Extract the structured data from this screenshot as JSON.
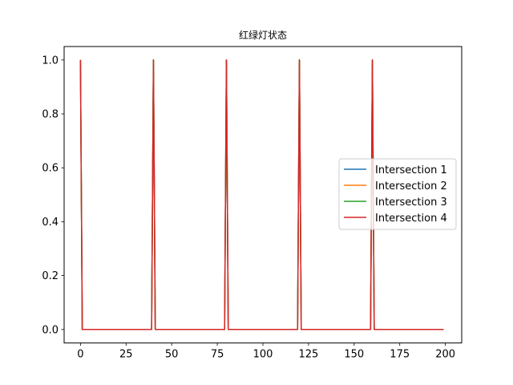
{
  "chart_data": {
    "type": "line",
    "title": "红绿灯状态",
    "xlabel": "",
    "ylabel": "",
    "xlim": [
      -8.95,
      208.95
    ],
    "ylim": [
      -0.05,
      1.05
    ],
    "x_ticks": [
      0,
      25,
      50,
      75,
      100,
      125,
      150,
      175,
      200
    ],
    "y_ticks": [
      0.0,
      0.2,
      0.4,
      0.6,
      0.8,
      1.0
    ],
    "x_tick_labels": [
      "0",
      "25",
      "50",
      "75",
      "100",
      "125",
      "150",
      "175",
      "200"
    ],
    "y_tick_labels": [
      "0.0",
      "0.2",
      "0.4",
      "0.6",
      "0.8",
      "1.0"
    ],
    "grid": false,
    "legend_position": "center-right",
    "x_range": [
      0,
      199
    ],
    "spike_x": [
      0,
      40,
      80,
      120,
      160
    ],
    "spike_value": 1,
    "base_value": 0,
    "series": [
      {
        "name": "Intersection 1",
        "color": "#1f77b4"
      },
      {
        "name": "Intersection 2",
        "color": "#ff7f0e"
      },
      {
        "name": "Intersection 3",
        "color": "#2ca02c"
      },
      {
        "name": "Intersection 4",
        "color": "#d62728"
      }
    ]
  }
}
